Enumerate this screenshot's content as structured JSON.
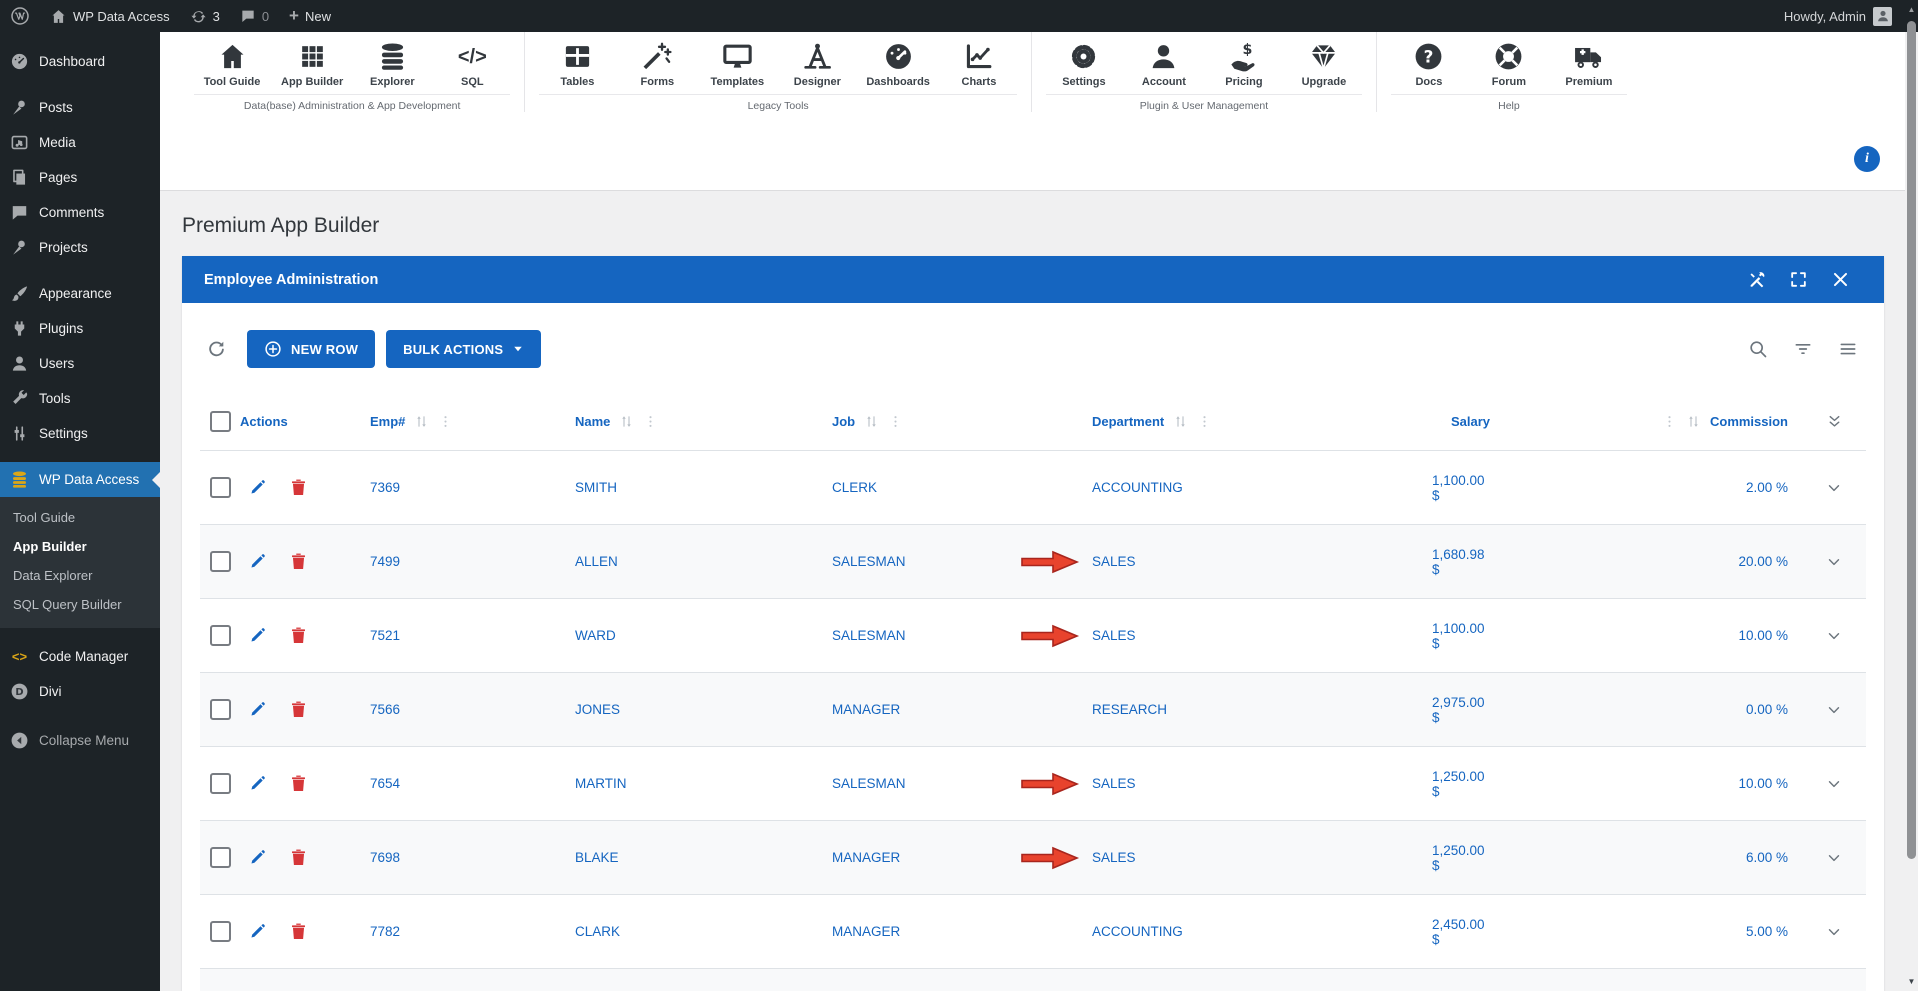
{
  "colors": {
    "accent": "#1565c0",
    "danger": "#d63638",
    "arrow_red": "#e8432d",
    "adminbar": "#1d2327",
    "active_menu": "#2271b1",
    "stripe": "#f8f9fa"
  },
  "admin_bar": {
    "logo_icon": "wordpress-logo",
    "home_icon": "home",
    "site_name": "WP Data Access",
    "updates_icon": "update-arrows",
    "updates_count": "3",
    "comments_icon": "comment-bubble",
    "comments_count": "0",
    "plus_icon": "plus",
    "new_label": "New",
    "howdy": "Howdy, Admin",
    "avatar_icon": "person"
  },
  "sidebar": {
    "items": [
      {
        "label": "Dashboard",
        "icon": "gauge"
      },
      {
        "label": "Posts",
        "icon": "pushpin",
        "gap": true
      },
      {
        "label": "Media",
        "icon": "media"
      },
      {
        "label": "Pages",
        "icon": "pages"
      },
      {
        "label": "Comments",
        "icon": "comment-bubble"
      },
      {
        "label": "Projects",
        "icon": "pushpin"
      },
      {
        "label": "Appearance",
        "icon": "paint-brush",
        "gap": true
      },
      {
        "label": "Plugins",
        "icon": "plug"
      },
      {
        "label": "Users",
        "icon": "person"
      },
      {
        "label": "Tools",
        "icon": "wrench"
      },
      {
        "label": "Settings",
        "icon": "sliders"
      },
      {
        "label": "WP Data Access",
        "icon": "database",
        "active": true,
        "gap": true
      },
      {
        "label": "Code Manager",
        "icon": "code-brackets",
        "icon_color": "#dba617",
        "gap": true
      },
      {
        "label": "Divi",
        "icon": "divi-logo"
      },
      {
        "label": "Collapse Menu",
        "icon": "collapse-arrow"
      }
    ],
    "submenu": {
      "parent": "WP Data Access",
      "items": [
        {
          "label": "Tool Guide"
        },
        {
          "label": "App Builder",
          "current": true
        },
        {
          "label": "Data Explorer"
        },
        {
          "label": "SQL Query Builder"
        }
      ]
    }
  },
  "ribbon": {
    "groups": [
      {
        "label": "Data(base) Administration & App Development",
        "items": [
          {
            "label": "Tool Guide",
            "icon": "home"
          },
          {
            "label": "App Builder",
            "icon": "app-grid"
          },
          {
            "label": "Explorer",
            "icon": "database"
          },
          {
            "label": "SQL",
            "icon": "sql-code"
          }
        ]
      },
      {
        "label": "Legacy Tools",
        "items": [
          {
            "label": "Tables",
            "icon": "tables"
          },
          {
            "label": "Forms",
            "icon": "magic-wand"
          },
          {
            "label": "Templates",
            "icon": "monitor"
          },
          {
            "label": "Designer",
            "icon": "drafting-compass"
          },
          {
            "label": "Dashboards",
            "icon": "dashboard-gauge"
          },
          {
            "label": "Charts",
            "icon": "line-chart"
          }
        ]
      },
      {
        "label": "Plugin & User Management",
        "items": [
          {
            "label": "Settings",
            "icon": "gear"
          },
          {
            "label": "Account",
            "icon": "person"
          },
          {
            "label": "Pricing",
            "icon": "hand-dollar"
          },
          {
            "label": "Upgrade",
            "icon": "gem"
          }
        ]
      },
      {
        "label": "Help",
        "items": [
          {
            "label": "Docs",
            "icon": "question-circle"
          },
          {
            "label": "Forum",
            "icon": "life-ring"
          },
          {
            "label": "Premium",
            "icon": "truck"
          }
        ]
      }
    ],
    "info_icon": "info",
    "info_label": "i"
  },
  "page": {
    "title": "Premium App Builder"
  },
  "panel": {
    "title": "Employee Administration",
    "header_icons": [
      "hammer-wrench",
      "fullscreen",
      "close"
    ],
    "toolbar": {
      "refresh_icon": "refresh",
      "new_row_label": "NEW ROW",
      "bulk_actions_label": "BULK ACTIONS",
      "right_icons": [
        "search",
        "filter",
        "menu"
      ]
    }
  },
  "table": {
    "columns": [
      {
        "label": "Actions"
      },
      {
        "label": "Emp#",
        "sortable": true
      },
      {
        "label": "Name",
        "sortable": true
      },
      {
        "label": "Job",
        "sortable": true
      },
      {
        "label": "Department",
        "sortable": true
      },
      {
        "label": "Salary",
        "sortable": true,
        "align": "right"
      },
      {
        "label": "Commission",
        "sortable": true,
        "align": "right"
      }
    ],
    "rows": [
      {
        "emp": "7369",
        "name": "SMITH",
        "job": "CLERK",
        "department": "ACCOUNTING",
        "salary": "1,100.00 $",
        "commission": "2.00 %",
        "arrow": false
      },
      {
        "emp": "7499",
        "name": "ALLEN",
        "job": "SALESMAN",
        "department": "SALES",
        "salary": "1,680.98 $",
        "commission": "20.00 %",
        "arrow": true
      },
      {
        "emp": "7521",
        "name": "WARD",
        "job": "SALESMAN",
        "department": "SALES",
        "salary": "1,100.00 $",
        "commission": "10.00 %",
        "arrow": true
      },
      {
        "emp": "7566",
        "name": "JONES",
        "job": "MANAGER",
        "department": "RESEARCH",
        "salary": "2,975.00 $",
        "commission": "0.00 %",
        "arrow": false
      },
      {
        "emp": "7654",
        "name": "MARTIN",
        "job": "SALESMAN",
        "department": "SALES",
        "salary": "1,250.00 $",
        "commission": "10.00 %",
        "arrow": true
      },
      {
        "emp": "7698",
        "name": "BLAKE",
        "job": "MANAGER",
        "department": "SALES",
        "salary": "1,250.00 $",
        "commission": "6.00 %",
        "arrow": true
      },
      {
        "emp": "7782",
        "name": "CLARK",
        "job": "MANAGER",
        "department": "ACCOUNTING",
        "salary": "2,450.00 $",
        "commission": "5.00 %",
        "arrow": false
      }
    ]
  }
}
